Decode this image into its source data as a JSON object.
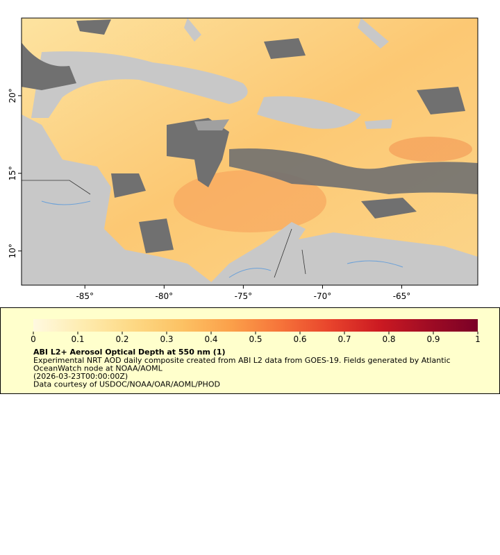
{
  "map": {
    "xlim": [
      -89,
      -60.2
    ],
    "ylim": [
      7.8,
      25
    ],
    "xticks": [
      {
        "value": -85,
        "label": "-85°"
      },
      {
        "value": -80,
        "label": "-80°"
      },
      {
        "value": -75,
        "label": "-75°"
      },
      {
        "value": -70,
        "label": "-70°"
      },
      {
        "value": -65,
        "label": "-65°"
      }
    ],
    "yticks": [
      {
        "value": 10,
        "label": "10°"
      },
      {
        "value": 15,
        "label": "15°"
      },
      {
        "value": 20,
        "label": "20°"
      }
    ]
  },
  "colorbar": {
    "range": [
      0,
      1
    ],
    "ticks": [
      0,
      0.1,
      0.2,
      0.3,
      0.4,
      0.5,
      0.6,
      0.7,
      0.8,
      0.9,
      1
    ],
    "colors": [
      "#fff9e0",
      "#feecb0",
      "#fdd985",
      "#fcc264",
      "#fba04a",
      "#f6743a",
      "#e8442c",
      "#cc1a22",
      "#a00c24",
      "#7a0026"
    ]
  },
  "legend": {
    "title": "ABI L2+ Aerosol Optical Depth at 550 nm (1)",
    "lines": [
      "Experimental NRT AOD daily composite created from ABI L2 data from GOES-19. Fields generated by Atlantic",
      "OceanWatch node at NOAA/AOML",
      "(2026-03-23T00:00:00Z)",
      "Data courtesy of USDOC/NOAA/OAR/AOML/PHOD"
    ]
  }
}
